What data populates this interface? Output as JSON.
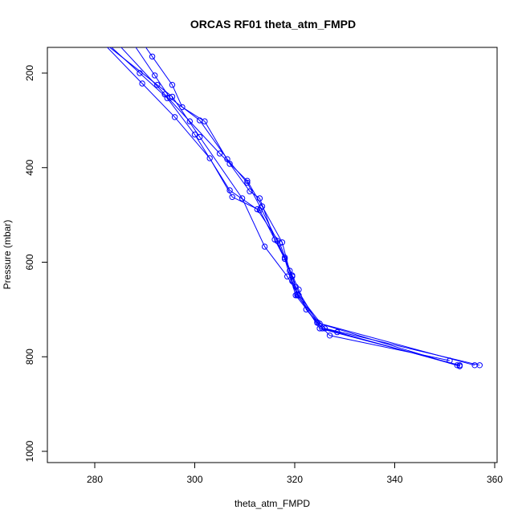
{
  "chart_data": {
    "type": "line",
    "title": "ORCAS RF01 theta_atm_FMPD",
    "xlabel": "theta_atm_FMPD",
    "ylabel": "Pressure (mbar)",
    "xlim": [
      270,
      360
    ],
    "ylim": [
      1020,
      150
    ],
    "y_axis_reversed": true,
    "x_ticks": [
      280,
      300,
      320,
      340,
      360
    ],
    "y_ticks": [
      200,
      400,
      600,
      800,
      1000
    ],
    "grid": false,
    "colors": {
      "series": "#0000ff",
      "axes": "#000000"
    },
    "marker": "open-circle",
    "series": [
      {
        "points": [
          [
            291.5,
            165
          ],
          [
            295.5,
            225
          ],
          [
            297.5,
            272
          ],
          [
            302,
            302
          ],
          [
            307,
            392
          ],
          [
            311,
            450
          ],
          [
            313,
            465
          ],
          [
            316,
            552
          ],
          [
            318,
            590
          ],
          [
            319.5,
            628
          ],
          [
            320.8,
            658
          ],
          [
            322.3,
            700
          ],
          [
            325.5,
            740
          ],
          [
            328.5,
            748
          ],
          [
            352.5,
            818
          ]
        ]
      },
      {
        "points": [
          [
            292,
            205
          ],
          [
            295,
            252
          ],
          [
            301,
            300
          ],
          [
            306.5,
            382
          ],
          [
            310.5,
            432
          ],
          [
            313.2,
            485
          ],
          [
            316.5,
            555
          ],
          [
            319,
            618
          ],
          [
            320.2,
            652
          ],
          [
            324.5,
            727
          ],
          [
            327,
            755
          ],
          [
            351,
            808
          ]
        ]
      },
      {
        "points": [
          [
            289,
            200
          ],
          [
            294.5,
            253
          ],
          [
            300,
            330
          ],
          [
            307,
            448
          ],
          [
            312.5,
            488
          ],
          [
            317,
            560
          ],
          [
            319.5,
            630
          ],
          [
            320.5,
            668
          ],
          [
            325,
            740
          ],
          [
            353,
            818
          ]
        ]
      },
      {
        "points": [
          [
            289.5,
            222
          ],
          [
            296,
            293
          ],
          [
            303,
            380
          ],
          [
            307.5,
            462
          ],
          [
            313,
            490
          ],
          [
            318,
            593
          ],
          [
            320.2,
            670
          ],
          [
            324.5,
            728
          ],
          [
            356,
            818
          ]
        ]
      },
      {
        "points": [
          [
            292.5,
            225
          ],
          [
            295.5,
            250
          ],
          [
            301,
            335
          ],
          [
            309.5,
            465
          ],
          [
            314,
            567
          ],
          [
            318.5,
            630
          ],
          [
            320.8,
            670
          ],
          [
            326,
            740
          ],
          [
            357,
            818
          ]
        ]
      },
      {
        "points": [
          [
            294,
            245
          ],
          [
            299,
            302
          ],
          [
            305,
            370
          ],
          [
            310.5,
            428
          ],
          [
            313.5,
            482
          ],
          [
            317.5,
            558
          ],
          [
            319.5,
            640
          ],
          [
            320.5,
            670
          ],
          [
            325,
            730
          ],
          [
            353,
            820
          ]
        ]
      }
    ]
  }
}
